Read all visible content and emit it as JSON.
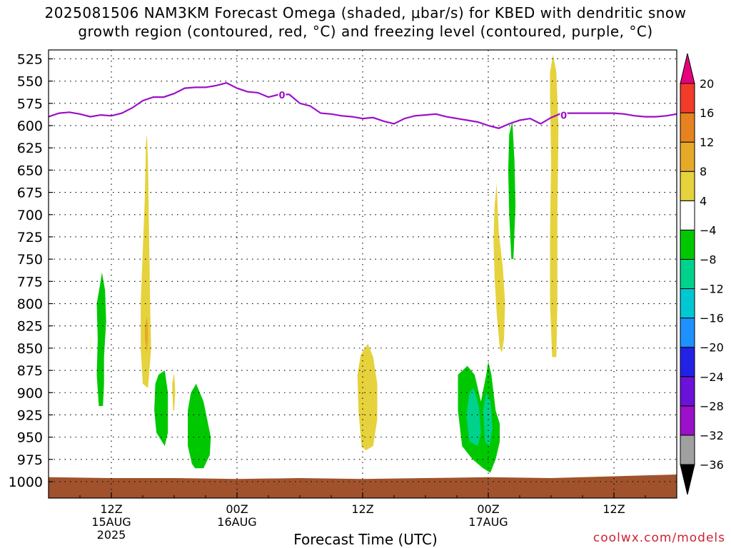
{
  "title_line1": "2025081506 NAM3KM Forecast Omega (shaded, μbar/s) for KBED with dendritic snow",
  "title_line2": "growth region (contoured, red, °C) and freezing level (contoured, purple, °C)",
  "credit": "coolwx.com/models",
  "chart_data": {
    "type": "heatmap",
    "title": "2025081506 NAM3KM Forecast Omega (shaded, μbar/s) for KBED with dendritic snow growth region (contoured, red, °C) and freezing level (contoured, purple, °C)",
    "xlabel": "Forecast Time (UTC)",
    "ylabel": "",
    "x_unit": "hours since 2025-08-15 06Z",
    "xlim": [
      0,
      60
    ],
    "ylim": [
      1000,
      515
    ],
    "y_ticks": [
      525,
      550,
      575,
      600,
      625,
      650,
      675,
      700,
      725,
      750,
      775,
      800,
      825,
      850,
      875,
      900,
      925,
      950,
      975,
      1000
    ],
    "x_ticks": [
      {
        "x": 6,
        "label": [
          "12Z",
          "15AUG",
          "2025"
        ]
      },
      {
        "x": 18,
        "label": [
          "00Z",
          "16AUG"
        ]
      },
      {
        "x": 30,
        "label": [
          "12Z"
        ]
      },
      {
        "x": 42,
        "label": [
          "00Z",
          "17AUG"
        ]
      },
      {
        "x": 54,
        "label": [
          "12Z"
        ]
      }
    ],
    "grid": true,
    "colorbar": {
      "levels": [
        -36,
        -32,
        -28,
        -24,
        -20,
        -16,
        -12,
        -8,
        -4,
        4,
        8,
        12,
        16,
        20
      ],
      "colors": [
        "#000000",
        "#a0a0a0",
        "#9b10c8",
        "#6a12d8",
        "#2222e6",
        "#1e90ff",
        "#00c8d2",
        "#00d28c",
        "#00c800",
        "#ffffff",
        "#e6d23c",
        "#e6aa28",
        "#e68220",
        "#f03c28",
        "#e6007e"
      ]
    },
    "freezing_level": {
      "label": "0",
      "color": "#9b10c8",
      "x": [
        0,
        1,
        2,
        3,
        4,
        5,
        6,
        7,
        8,
        9,
        10,
        11,
        12,
        13,
        14,
        15,
        16,
        17,
        18,
        19,
        20,
        21,
        22,
        23,
        24,
        25,
        26,
        27,
        28,
        29,
        30,
        31,
        32,
        33,
        34,
        35,
        36,
        37,
        38,
        39,
        40,
        41,
        42,
        43,
        44,
        45,
        46,
        47,
        48,
        49,
        50,
        51,
        52,
        53,
        54,
        55,
        56,
        57,
        58,
        59,
        60
      ],
      "p": [
        590,
        586,
        585,
        587,
        590,
        588,
        589,
        586,
        580,
        572,
        568,
        568,
        564,
        558,
        557,
        557,
        555,
        552,
        558,
        562,
        563,
        568,
        565,
        565,
        575,
        578,
        586,
        587,
        589,
        590,
        592,
        591,
        595,
        598,
        592,
        589,
        588,
        587,
        590,
        592,
        594,
        596,
        600,
        603,
        598,
        594,
        592,
        598,
        591,
        586,
        586,
        586,
        586,
        586,
        586,
        587,
        589,
        590,
        590,
        589,
        587
      ]
    },
    "omega_regions": [
      {
        "omega": -6,
        "points": [
          [
            4.8,
            915
          ],
          [
            4.6,
            880
          ],
          [
            4.7,
            840
          ],
          [
            4.6,
            800
          ],
          [
            4.9,
            780
          ],
          [
            5.1,
            765
          ],
          [
            5.4,
            785
          ],
          [
            5.5,
            820
          ],
          [
            5.3,
            860
          ],
          [
            5.3,
            890
          ],
          [
            5.2,
            915
          ]
        ]
      },
      {
        "omega": 5,
        "points": [
          [
            3.9,
            860
          ],
          [
            4.0,
            845
          ],
          [
            4.1,
            830
          ],
          [
            4.0,
            850
          ]
        ]
      },
      {
        "omega": 5,
        "points": [
          [
            9.0,
            890
          ],
          [
            8.8,
            850
          ],
          [
            8.8,
            800
          ],
          [
            9.0,
            740
          ],
          [
            9.2,
            680
          ],
          [
            9.3,
            620
          ],
          [
            9.4,
            610
          ],
          [
            9.5,
            640
          ],
          [
            9.6,
            720
          ],
          [
            9.7,
            800
          ],
          [
            9.8,
            850
          ],
          [
            9.6,
            880
          ],
          [
            9.5,
            895
          ]
        ]
      },
      {
        "omega": 10,
        "points": [
          [
            9.2,
            840
          ],
          [
            9.2,
            825
          ],
          [
            9.4,
            815
          ],
          [
            9.5,
            825
          ],
          [
            9.5,
            840
          ],
          [
            9.4,
            855
          ]
        ]
      },
      {
        "omega": -6,
        "points": [
          [
            10.3,
            945
          ],
          [
            10.1,
            920
          ],
          [
            10.2,
            890
          ],
          [
            10.5,
            880
          ],
          [
            11.1,
            875
          ],
          [
            11.4,
            900
          ],
          [
            11.4,
            945
          ],
          [
            11.1,
            960
          ]
        ]
      },
      {
        "omega": 5,
        "points": [
          [
            11.9,
            920
          ],
          [
            11.8,
            890
          ],
          [
            12.0,
            878
          ],
          [
            12.1,
            900
          ],
          [
            12.0,
            920
          ]
        ]
      },
      {
        "omega": -6,
        "points": [
          [
            13.7,
            980
          ],
          [
            13.3,
            960
          ],
          [
            13.3,
            920
          ],
          [
            13.6,
            900
          ],
          [
            14.1,
            890
          ],
          [
            14.8,
            910
          ],
          [
            15.5,
            950
          ],
          [
            15.4,
            970
          ],
          [
            14.8,
            985
          ],
          [
            14.0,
            985
          ]
        ]
      },
      {
        "omega": 5,
        "points": [
          [
            29.9,
            960
          ],
          [
            29.6,
            920
          ],
          [
            29.5,
            880
          ],
          [
            29.8,
            858
          ],
          [
            30.5,
            845
          ],
          [
            31.0,
            860
          ],
          [
            31.4,
            890
          ],
          [
            31.4,
            930
          ],
          [
            31.0,
            960
          ],
          [
            30.3,
            965
          ]
        ]
      },
      {
        "omega": -6,
        "points": [
          [
            39.5,
            960
          ],
          [
            39.1,
            920
          ],
          [
            39.1,
            880
          ],
          [
            40.0,
            870
          ],
          [
            40.7,
            880
          ],
          [
            41.3,
            910
          ],
          [
            41.8,
            880
          ],
          [
            42.0,
            865
          ],
          [
            42.3,
            880
          ],
          [
            42.7,
            920
          ],
          [
            43.1,
            935
          ],
          [
            43.1,
            955
          ],
          [
            42.7,
            975
          ],
          [
            42.2,
            990
          ],
          [
            41.5,
            985
          ],
          [
            40.5,
            975
          ]
        ]
      },
      {
        "omega": -10,
        "points": [
          [
            40.2,
            955
          ],
          [
            39.9,
            925
          ],
          [
            40.2,
            900
          ],
          [
            40.6,
            895
          ],
          [
            41.1,
            915
          ],
          [
            41.3,
            945
          ],
          [
            41.0,
            960
          ]
        ]
      },
      {
        "omega": -10,
        "points": [
          [
            41.7,
            955
          ],
          [
            41.5,
            920
          ],
          [
            41.8,
            900
          ],
          [
            42.2,
            910
          ],
          [
            42.4,
            940
          ],
          [
            42.1,
            960
          ]
        ]
      },
      {
        "omega": 5,
        "points": [
          [
            43.1,
            850
          ],
          [
            42.8,
            810
          ],
          [
            42.6,
            770
          ],
          [
            42.5,
            730
          ],
          [
            42.6,
            690
          ],
          [
            42.8,
            665
          ],
          [
            43.0,
            720
          ],
          [
            43.4,
            760
          ],
          [
            43.6,
            800
          ],
          [
            43.5,
            840
          ],
          [
            43.3,
            855
          ]
        ]
      },
      {
        "omega": -6,
        "points": [
          [
            44.2,
            750
          ],
          [
            44.0,
            700
          ],
          [
            43.9,
            650
          ],
          [
            44.0,
            610
          ],
          [
            44.3,
            595
          ],
          [
            44.5,
            640
          ],
          [
            44.6,
            690
          ],
          [
            44.4,
            750
          ]
        ]
      },
      {
        "omega": 5,
        "points": [
          [
            48.1,
            860
          ],
          [
            47.9,
            800
          ],
          [
            47.9,
            720
          ],
          [
            48.0,
            640
          ],
          [
            47.9,
            570
          ],
          [
            47.9,
            540
          ],
          [
            48.2,
            520
          ],
          [
            48.5,
            540
          ],
          [
            48.7,
            600
          ],
          [
            48.6,
            700
          ],
          [
            48.6,
            800
          ],
          [
            48.5,
            860
          ]
        ]
      }
    ],
    "terrain_top": [
      [
        0,
        995
      ],
      [
        6,
        996
      ],
      [
        12,
        996
      ],
      [
        18,
        997
      ],
      [
        24,
        996
      ],
      [
        30,
        997
      ],
      [
        36,
        996
      ],
      [
        42,
        995
      ],
      [
        48,
        996
      ],
      [
        54,
        994
      ],
      [
        60,
        992
      ]
    ]
  }
}
